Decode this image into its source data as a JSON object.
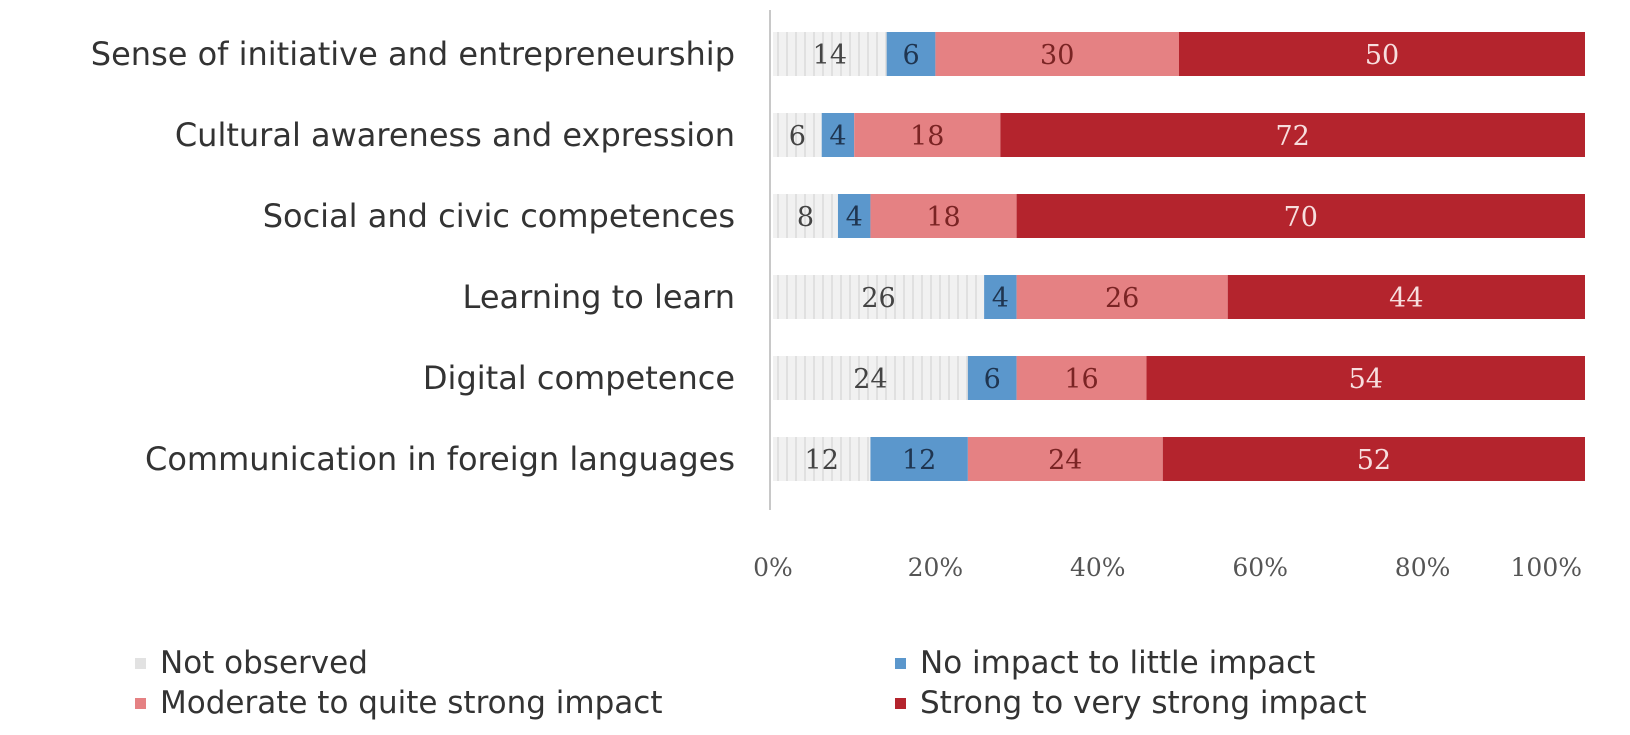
{
  "chart_data": {
    "type": "bar",
    "orientation": "horizontal",
    "stacked": true,
    "categories": [
      "Sense of initiative and entrepreneurship",
      "Cultural awareness and expression",
      "Social and civic competences",
      "Learning to learn",
      "Digital competence",
      "Communication in foreign languages"
    ],
    "series": [
      {
        "name": "Not observed",
        "color": "#ececec",
        "label_color": "#444444",
        "pattern": "vertical-stripes",
        "values": [
          14,
          6,
          8,
          26,
          24,
          12
        ]
      },
      {
        "name": "No impact to little impact",
        "color": "#5b97cc",
        "label_color": "#1f3550",
        "values": [
          6,
          4,
          4,
          4,
          6,
          12
        ]
      },
      {
        "name": "Moderate to quite strong impact",
        "color": "#e58183",
        "label_color": "#7a2424",
        "values": [
          30,
          18,
          18,
          26,
          16,
          24
        ]
      },
      {
        "name": "Strong to very strong impact",
        "color": "#b4242d",
        "label_color": "#f7dede",
        "values": [
          50,
          72,
          70,
          44,
          54,
          52
        ]
      }
    ],
    "x_ticks": [
      "0%",
      "20%",
      "40%",
      "60%",
      "80%",
      "100%"
    ],
    "xlim": [
      0,
      100
    ],
    "grid": false,
    "legend_position": "bottom"
  }
}
